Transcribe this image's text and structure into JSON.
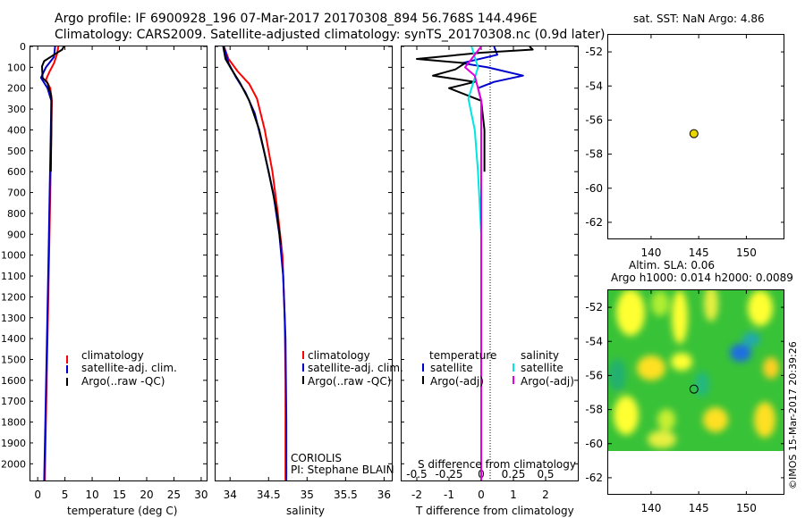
{
  "header": {
    "line1": "Argo profile: IF 6900928_196 07-Mar-2017 20170308_894 56.768S 144.496E",
    "line2": "Climatology: CARS2009. Satellite-adjusted climatology: synTS_20170308.nc (0.9d later)"
  },
  "colors": {
    "climatology": "#ff0000",
    "satellite": "#0000cc",
    "argo": "#000000",
    "cyan": "#00e5e5",
    "magenta": "#e000e0"
  },
  "chart_data": [
    {
      "id": "temperature",
      "type": "line",
      "xlabel": "temperature (deg C)",
      "ylabel": "",
      "xlim": [
        -1.5,
        31
      ],
      "ylim": [
        2080,
        0
      ],
      "xticks": [
        0,
        5,
        10,
        15,
        20,
        25,
        30
      ],
      "xtick_labels": [
        "0",
        "5",
        "10",
        "15",
        "20",
        "25",
        "30"
      ],
      "yticks": [
        0,
        100,
        200,
        300,
        400,
        500,
        600,
        700,
        800,
        900,
        1000,
        1100,
        1200,
        1300,
        1400,
        1500,
        1600,
        1700,
        1800,
        1900,
        2000
      ],
      "ytick_labels": [
        "0",
        "100",
        "200",
        "300",
        "400",
        "500",
        "600",
        "700",
        "800",
        "900",
        "1000",
        "1100",
        "1200",
        "1300",
        "1400",
        "1500",
        "1600",
        "1700",
        "1800",
        "1900",
        "2000"
      ],
      "legend": [
        "climatology",
        "satellite-adj. clim.",
        "Argo(..raw -QC)"
      ],
      "series": [
        {
          "name": "climatology",
          "color": "#ff0000",
          "points": [
            [
              3.8,
              0
            ],
            [
              3.5,
              40
            ],
            [
              3.0,
              80
            ],
            [
              2.2,
              120
            ],
            [
              1.5,
              160
            ],
            [
              2.3,
              200
            ],
            [
              2.6,
              260
            ],
            [
              2.5,
              400
            ],
            [
              2.3,
              700
            ],
            [
              2.1,
              1000
            ],
            [
              1.8,
              1400
            ],
            [
              1.5,
              1800
            ],
            [
              1.3,
              2080
            ]
          ]
        },
        {
          "name": "satellite-adj. clim.",
          "color": "#0000cc",
          "points": [
            [
              3.2,
              0
            ],
            [
              3.0,
              50
            ],
            [
              1.5,
              100
            ],
            [
              0.6,
              150
            ],
            [
              1.8,
              200
            ],
            [
              2.5,
              260
            ],
            [
              2.4,
              400
            ],
            [
              2.2,
              700
            ],
            [
              2.0,
              1000
            ],
            [
              1.7,
              1400
            ],
            [
              1.4,
              1800
            ],
            [
              1.2,
              2080
            ]
          ]
        },
        {
          "name": "Argo(..raw -QC)",
          "color": "#000000",
          "points": [
            [
              4.8,
              0
            ],
            [
              4.5,
              15
            ],
            [
              3.0,
              40
            ],
            [
              1.2,
              70
            ],
            [
              0.8,
              95
            ],
            [
              0.9,
              150
            ],
            [
              1.8,
              175
            ],
            [
              2.5,
              240
            ],
            [
              2.5,
              400
            ],
            [
              2.4,
              600
            ]
          ]
        }
      ]
    },
    {
      "id": "salinity",
      "type": "line",
      "xlabel": "salinity",
      "ylabel": "",
      "xlim": [
        33.8,
        36.1
      ],
      "ylim": [
        2080,
        0
      ],
      "xticks": [
        34,
        34.5,
        35,
        35.5,
        36
      ],
      "xtick_labels": [
        "34",
        "34.5",
        "35",
        "35.5",
        "36"
      ],
      "legend": [
        "climatology",
        "satellite-adj. clim.",
        "Argo(..raw -QC)"
      ],
      "annotations": [
        "CORIOLIS",
        "PI: Stephane BLAIN"
      ],
      "series": [
        {
          "name": "climatology",
          "color": "#ff0000",
          "points": [
            [
              33.92,
              0
            ],
            [
              33.98,
              60
            ],
            [
              34.1,
              120
            ],
            [
              34.25,
              180
            ],
            [
              34.35,
              250
            ],
            [
              34.45,
              400
            ],
            [
              34.55,
              600
            ],
            [
              34.62,
              800
            ],
            [
              34.68,
              1000
            ],
            [
              34.71,
              1300
            ],
            [
              34.72,
              1600
            ],
            [
              34.72,
              2080
            ]
          ]
        },
        {
          "name": "satellite-adj. clim.",
          "color": "#0000cc",
          "points": [
            [
              33.92,
              0
            ],
            [
              33.98,
              80
            ],
            [
              34.08,
              150
            ],
            [
              34.2,
              220
            ],
            [
              34.32,
              320
            ],
            [
              34.44,
              500
            ],
            [
              34.56,
              700
            ],
            [
              34.64,
              900
            ],
            [
              34.69,
              1100
            ],
            [
              34.72,
              1400
            ],
            [
              34.73,
              1800
            ],
            [
              34.73,
              2080
            ]
          ]
        },
        {
          "name": "Argo(..raw -QC)",
          "color": "#000000",
          "points": [
            [
              33.91,
              0
            ],
            [
              33.94,
              60
            ],
            [
              34.02,
              110
            ],
            [
              34.13,
              175
            ],
            [
              34.25,
              260
            ],
            [
              34.38,
              400
            ],
            [
              34.5,
              600
            ],
            [
              34.6,
              780
            ],
            [
              34.66,
              950
            ]
          ]
        }
      ]
    },
    {
      "id": "differences",
      "type": "line",
      "xlabel": "T difference from climatology",
      "ylabel": "",
      "top_label": "S difference from climatology",
      "xlim": [
        -2.5,
        3.0
      ],
      "ylim": [
        2080,
        0
      ],
      "xticks": [
        -2,
        -1,
        0,
        1,
        2
      ],
      "xtick_labels": [
        "-2",
        "-1",
        "0",
        "1",
        "2"
      ],
      "sxticks": [
        -2,
        -1,
        0,
        1,
        2
      ],
      "sxtick_labels": [
        "-0.5",
        "-0.25",
        "0",
        "0.25",
        "0.5"
      ],
      "legend_left_title": "temperature",
      "legend_right_title": "salinity",
      "legend": [
        "satellite",
        "Argo(-adj)",
        "satellite",
        "Argo(-adj)"
      ],
      "series": [
        {
          "name": "T satellite",
          "color": "#0000cc",
          "points": [
            [
              0.4,
              0
            ],
            [
              0.5,
              40
            ],
            [
              -0.6,
              80
            ],
            [
              0.2,
              100
            ],
            [
              1.3,
              140
            ],
            [
              0.4,
              170
            ],
            [
              -0.1,
              200
            ],
            [
              0.0,
              260
            ],
            [
              0.0,
              2080
            ]
          ]
        },
        {
          "name": "T Argo(-adj)",
          "color": "#000000",
          "points": [
            [
              1.5,
              0
            ],
            [
              1.6,
              15
            ],
            [
              0.0,
              30
            ],
            [
              -2.0,
              60
            ],
            [
              -0.5,
              80
            ],
            [
              -0.8,
              110
            ],
            [
              -1.5,
              140
            ],
            [
              -0.2,
              170
            ],
            [
              -1.0,
              200
            ],
            [
              0.0,
              260
            ],
            [
              0.1,
              400
            ],
            [
              0.1,
              600
            ]
          ]
        },
        {
          "name": "S satellite",
          "color": "#00e5e5",
          "points": [
            [
              -0.3,
              0
            ],
            [
              -0.1,
              100
            ],
            [
              -0.4,
              250
            ],
            [
              -0.2,
              400
            ],
            [
              -0.1,
              600
            ],
            [
              0.0,
              900
            ],
            [
              0.0,
              2080
            ]
          ]
        },
        {
          "name": "S Argo(-adj)",
          "color": "#e000e0",
          "points": [
            [
              0.0,
              0
            ],
            [
              -0.3,
              60
            ],
            [
              -0.5,
              100
            ],
            [
              -0.2,
              140
            ],
            [
              -0.1,
              200
            ],
            [
              0.0,
              260
            ],
            [
              0.0,
              1000
            ],
            [
              0.0,
              2080
            ]
          ]
        }
      ]
    },
    {
      "id": "sst_map",
      "type": "scatter",
      "title": "sat. SST: NaN Argo: 4.86",
      "xlim": [
        135.5,
        154
      ],
      "ylim": [
        -63,
        -51
      ],
      "xticks": [
        140,
        145,
        150
      ],
      "xtick_labels": [
        "140",
        "145",
        "150"
      ],
      "yticks": [
        -52,
        -54,
        -56,
        -58,
        -60,
        -62
      ],
      "ytick_labels": [
        "-52",
        "-54",
        "-56",
        "-58",
        "-60",
        "-62"
      ],
      "points": [
        [
          144.5,
          -56.8
        ]
      ],
      "marker_color": "#e8d800"
    },
    {
      "id": "sla_map",
      "type": "heatmap",
      "title_line1": "Altim. SLA: 0.06",
      "title_line2": "Argo h1000: 0.014 h2000: 0.0089",
      "xlim": [
        135.5,
        154
      ],
      "ylim": [
        -63,
        -51
      ],
      "data_lon": [
        135.5,
        154
      ],
      "data_lat": [
        -60,
        -51
      ],
      "xticks": [
        140,
        145,
        150
      ],
      "xtick_labels": [
        "140",
        "145",
        "150"
      ],
      "yticks": [
        -52,
        -54,
        -56,
        -58,
        -60,
        -62
      ],
      "ytick_labels": [
        "-52",
        "-54",
        "-56",
        "-58",
        "-60",
        "-62"
      ],
      "points": [
        [
          144.5,
          -56.8
        ]
      ]
    }
  ],
  "watermark": "©IMOS 15-Mar-2017 20:39:26"
}
